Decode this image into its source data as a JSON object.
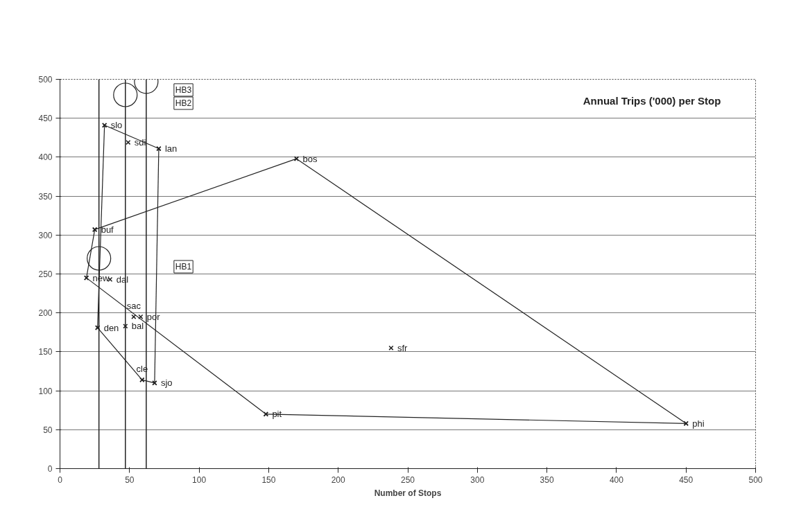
{
  "chart_data": {
    "type": "line",
    "title": "Annual Trips ('000) per Stop",
    "xlabel": "Number of Stops",
    "xlim": [
      0,
      500
    ],
    "xticks": [
      0,
      50,
      100,
      150,
      200,
      250,
      300,
      350,
      400,
      450,
      500
    ],
    "ylim": [
      0,
      500
    ],
    "yticks": [
      0,
      50,
      100,
      150,
      200,
      250,
      300,
      350,
      400,
      450,
      500
    ],
    "grid": "y",
    "marker": "cross",
    "line_style": "solid",
    "series": [
      {
        "color": "#222222",
        "x": [
          32,
          71
        ],
        "values": [
          441,
          411
        ]
      },
      {
        "color": "#222222",
        "x": [
          68,
          71
        ],
        "values": [
          110,
          411
        ]
      },
      {
        "color": "#222222",
        "x": [
          59,
          68
        ],
        "values": [
          114,
          110
        ]
      },
      {
        "color": "#222222",
        "x": [
          27,
          59
        ],
        "values": [
          181,
          114
        ]
      },
      {
        "color": "#222222",
        "x": [
          27,
          32
        ],
        "values": [
          181,
          441
        ]
      },
      {
        "color": "#222222",
        "x": [
          19,
          25
        ],
        "values": [
          245,
          307
        ]
      },
      {
        "color": "#222222",
        "x": [
          25,
          170
        ],
        "values": [
          307,
          398
        ]
      },
      {
        "color": "#222222",
        "x": [
          170,
          450
        ],
        "values": [
          398,
          58
        ]
      },
      {
        "color": "#222222",
        "x": [
          148,
          450
        ],
        "values": [
          70,
          58
        ]
      },
      {
        "color": "#222222",
        "x": [
          19,
          148
        ],
        "values": [
          245,
          70
        ]
      },
      {
        "type": "scatter",
        "color": "#222222",
        "x": [
          49,
          36,
          53,
          58,
          47,
          238
        ],
        "values": [
          419,
          243,
          195,
          195,
          183,
          155
        ]
      },
      {
        "type": "scatter",
        "marker": "circle",
        "color": "#222222",
        "x": [
          28,
          47,
          62
        ],
        "values": [
          270,
          480,
          497
        ]
      }
    ],
    "ref_lines": [
      {
        "axis": "x",
        "value": 28,
        "label": null,
        "color": "#222222"
      },
      {
        "axis": "x",
        "value": 47,
        "label": null,
        "color": "#222222"
      },
      {
        "axis": "x",
        "value": 62,
        "label": null,
        "color": "#222222"
      }
    ],
    "annotations": [
      {
        "text": "slo",
        "x": 32,
        "y": 441
      },
      {
        "text": "sdi",
        "x": 49,
        "y": 419
      },
      {
        "text": "lan",
        "x": 71,
        "y": 411
      },
      {
        "text": "bos",
        "x": 170,
        "y": 398
      },
      {
        "text": "buf",
        "x": 25,
        "y": 307
      },
      {
        "text": "new",
        "x": 19,
        "y": 245
      },
      {
        "text": "dal",
        "x": 36,
        "y": 243
      },
      {
        "text": "sac",
        "x": 53,
        "y": 195
      },
      {
        "text": "por",
        "x": 58,
        "y": 195
      },
      {
        "text": "den",
        "x": 27,
        "y": 181
      },
      {
        "text": "bal",
        "x": 47,
        "y": 183
      },
      {
        "text": "sjo",
        "x": 68,
        "y": 110
      },
      {
        "text": "cle",
        "x": 59,
        "y": 114
      },
      {
        "text": "pit",
        "x": 148,
        "y": 70
      },
      {
        "text": "phi",
        "x": 450,
        "y": 58
      },
      {
        "text": "sfr",
        "x": 238,
        "y": 155
      },
      "HB1",
      "HB2",
      "HB3"
    ]
  }
}
